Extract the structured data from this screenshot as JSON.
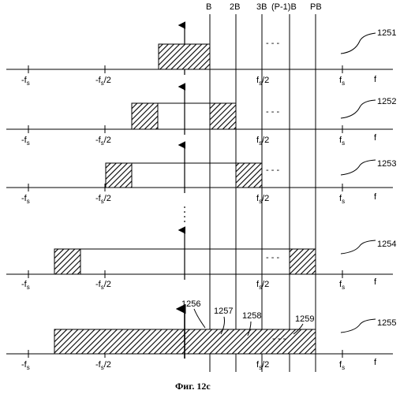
{
  "caption": "Фиг. 12с",
  "top_labels": [
    "B",
    "2B",
    "3B",
    "(P-1)B",
    "PB"
  ],
  "axis": {
    "neg_fs": "-f",
    "neg_half": "-f",
    "neg_half_suffix": "/2",
    "half": "f",
    "half_suffix": "/2",
    "fs": "f",
    "f": "f",
    "sub": "s",
    "dots": "- - -"
  },
  "panels": [
    {
      "ref": "1251"
    },
    {
      "ref": "1252"
    },
    {
      "ref": "1253"
    },
    {
      "ref": "1254"
    },
    {
      "ref": "1255"
    }
  ],
  "segment_labels": [
    "1256",
    "1257",
    "1258",
    "1259"
  ]
}
